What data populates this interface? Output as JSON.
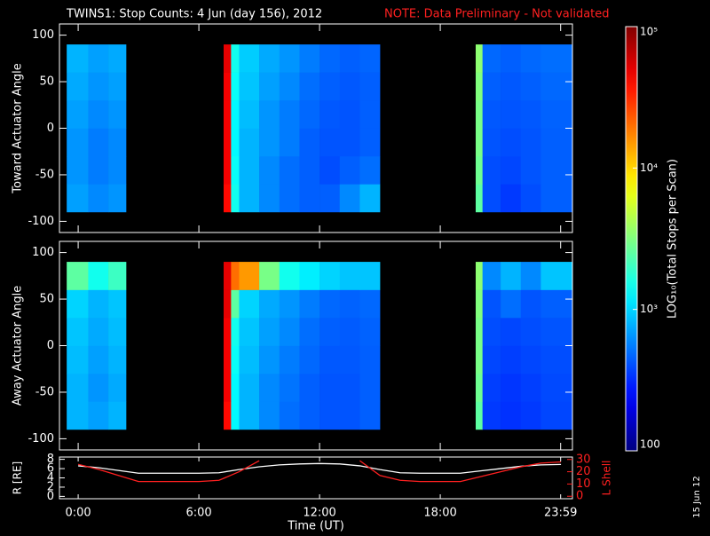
{
  "chart_data": [
    {
      "type": "heatmap",
      "title": "TWINS1: Stop Counts:  4 Jun (day 156), 2012",
      "note": "NOTE: Data Preliminary - Not validated",
      "note_color": "#ff2020",
      "y_label": "Toward Actuator Angle",
      "xlim": [
        -0.93,
        24.57
      ],
      "ylim": [
        -112,
        112
      ],
      "yticks": [
        -100,
        -50,
        0,
        50,
        100
      ],
      "x_edges": [
        -0.57,
        0.5,
        1.5,
        2.38,
        7.23,
        7.6,
        8,
        9,
        10,
        11,
        12,
        13,
        14,
        15,
        19.76,
        20.1,
        21,
        22,
        23,
        24.57
      ],
      "y_edges": [
        -90,
        -60,
        -30,
        0,
        30,
        60,
        90
      ],
      "z": [
        [
          700,
          600,
          650,
          null,
          40000,
          1500,
          800,
          600,
          500,
          450,
          450,
          600,
          800,
          null,
          2500,
          400,
          350,
          400,
          450
        ],
        [
          650,
          550,
          600,
          null,
          45000,
          1400,
          800,
          600,
          500,
          450,
          400,
          450,
          500,
          null,
          2800,
          400,
          380,
          420,
          450
        ],
        [
          650,
          550,
          600,
          null,
          45000,
          1300,
          800,
          650,
          550,
          450,
          420,
          420,
          450,
          null,
          3000,
          420,
          400,
          420,
          450
        ],
        [
          700,
          600,
          650,
          null,
          45000,
          1300,
          850,
          650,
          550,
          480,
          430,
          420,
          450,
          null,
          3000,
          430,
          420,
          430,
          460
        ],
        [
          750,
          650,
          700,
          null,
          45000,
          1400,
          900,
          700,
          600,
          500,
          450,
          430,
          450,
          null,
          3200,
          450,
          430,
          450,
          480
        ],
        [
          800,
          700,
          750,
          null,
          50000,
          1500,
          950,
          750,
          650,
          550,
          480,
          450,
          470,
          null,
          3500,
          480,
          450,
          480,
          500
        ]
      ]
    },
    {
      "type": "heatmap",
      "y_label": "Away Actuator Angle",
      "xlim": [
        -0.93,
        24.57
      ],
      "ylim": [
        -112,
        112
      ],
      "yticks": [
        -100,
        -50,
        0,
        50,
        100
      ],
      "x_edges": [
        -0.57,
        0.5,
        1.5,
        2.38,
        7.23,
        7.6,
        8,
        9,
        10,
        11,
        12,
        13,
        14,
        15,
        19.76,
        20.1,
        21,
        22,
        23,
        24.57
      ],
      "y_edges": [
        -90,
        -60,
        -30,
        0,
        30,
        60,
        90
      ],
      "z": [
        [
          800,
          700,
          800,
          null,
          40000,
          1300,
          800,
          600,
          500,
          450,
          420,
          420,
          450,
          null,
          2500,
          350,
          330,
          350,
          380
        ],
        [
          800,
          650,
          750,
          null,
          45000,
          1300,
          800,
          600,
          520,
          450,
          420,
          420,
          450,
          null,
          2800,
          360,
          340,
          360,
          390
        ],
        [
          850,
          700,
          800,
          null,
          45000,
          1400,
          850,
          650,
          550,
          480,
          430,
          430,
          450,
          null,
          3000,
          380,
          360,
          380,
          400
        ],
        [
          900,
          750,
          850,
          null,
          45000,
          1500,
          900,
          700,
          600,
          500,
          450,
          440,
          460,
          null,
          3000,
          400,
          380,
          400,
          420
        ],
        [
          1000,
          800,
          900,
          null,
          50000,
          2500,
          1000,
          750,
          650,
          550,
          480,
          460,
          480,
          null,
          3200,
          420,
          500,
          420,
          450
        ],
        [
          2500,
          1500,
          2000,
          null,
          50000,
          20000,
          15000,
          3000,
          1500,
          1200,
          1000,
          900,
          900,
          null,
          3500,
          600,
          800,
          600,
          900
        ]
      ]
    },
    {
      "type": "colorbar",
      "label": "LOG₁₀(Total Stops per Scan)",
      "log": true,
      "clim": [
        100,
        100000
      ],
      "ticks": [
        100,
        {
          "value": 1000,
          "label": "10³"
        },
        {
          "value": 10000,
          "label": "10⁴"
        },
        {
          "value": 100000,
          "label": "10⁵"
        }
      ]
    },
    {
      "type": "line",
      "x_label": "Time (UT)",
      "y_label": "R [RE]",
      "y2_label": "L Shell",
      "y2_color": "#ff2020",
      "xlim": [
        -0.93,
        24.57
      ],
      "ylim": [
        -0.5,
        8.5
      ],
      "yticks": [
        0,
        2,
        4,
        6,
        8
      ],
      "y2lim": [
        -2,
        32
      ],
      "y2ticks": [
        0,
        10,
        20,
        30
      ],
      "xticks": [
        {
          "value": 0,
          "label": "0:00"
        },
        {
          "value": 6,
          "label": "6:00"
        },
        {
          "value": 12,
          "label": "12:00"
        },
        {
          "value": 18,
          "label": "18:00"
        },
        {
          "value": 23.983,
          "label": "23:59"
        }
      ],
      "x": [
        0,
        1,
        2,
        3,
        4,
        5,
        6,
        7,
        8,
        9,
        10,
        11,
        12,
        13,
        14,
        15,
        16,
        17,
        18,
        19,
        20,
        21,
        22,
        23,
        24
      ],
      "series": [
        {
          "name": "R",
          "color": "#ffffff",
          "values": [
            6.6,
            6.2,
            5.6,
            5.0,
            5.0,
            5.0,
            5.0,
            5.1,
            5.8,
            6.4,
            6.8,
            7.0,
            7.1,
            7.0,
            6.6,
            5.8,
            5.1,
            5.0,
            5.0,
            5.0,
            5.5,
            6.0,
            6.5,
            6.8,
            6.9
          ]
        },
        {
          "name": "L Shell",
          "color": "#ff2020",
          "axis": "y2",
          "values": [
            26,
            22,
            17,
            12,
            12,
            12,
            12,
            13,
            20,
            29,
            null,
            null,
            null,
            null,
            29,
            17,
            13,
            12,
            12,
            12,
            16,
            20,
            24,
            27,
            28
          ]
        }
      ]
    },
    {
      "type": "stamp",
      "text": "15 Jun 12"
    }
  ]
}
